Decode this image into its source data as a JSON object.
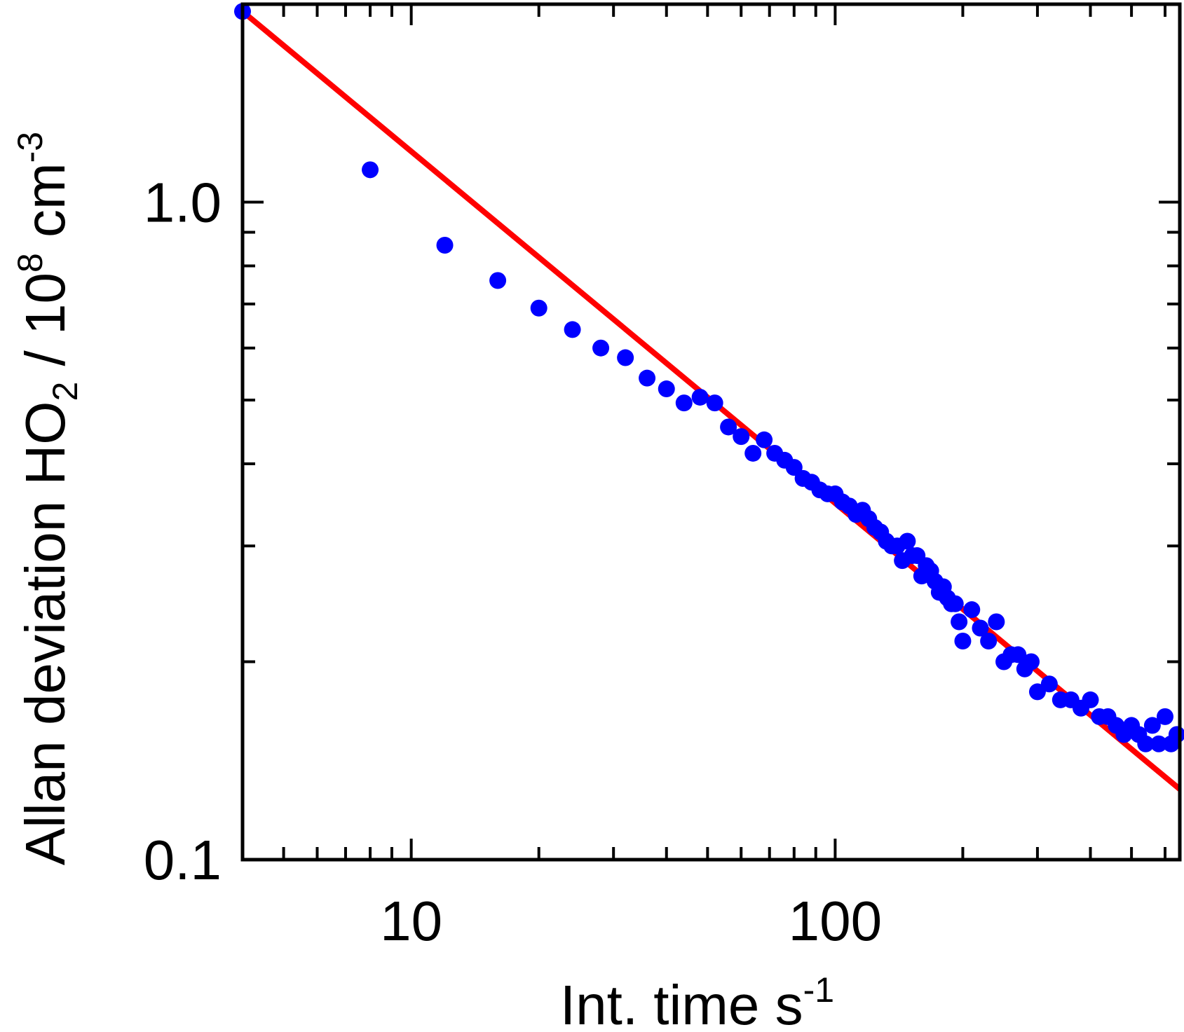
{
  "chart_data": {
    "type": "scatter",
    "xlabel": {
      "main": "Int. time s",
      "sup": "-1"
    },
    "ylabel": {
      "main": "Allan deviation HO",
      "sub": "2",
      "mid": " / 10",
      "sup1": "8",
      "mid2": " cm",
      "sup2": "-3"
    },
    "x_scale": "log",
    "y_scale": "log",
    "xlim": [
      4,
      650
    ],
    "ylim": [
      0.1,
      2.0
    ],
    "x_ticks": [
      10,
      100
    ],
    "x_tick_labels": [
      "10",
      "100"
    ],
    "y_ticks": [
      0.1,
      1.0
    ],
    "y_tick_labels": [
      "0.1",
      "1.0"
    ],
    "grid": false,
    "legend": "none",
    "colors": {
      "points": "#0000ff",
      "fit": "#ff0000",
      "axes": "#000000"
    },
    "series": [
      {
        "kind": "points",
        "x": [
          4,
          8,
          12,
          16,
          20,
          24,
          28,
          32,
          36,
          40,
          44,
          48,
          52,
          56,
          60,
          64,
          68,
          72,
          76,
          80,
          84,
          88,
          92,
          96,
          100,
          104,
          108,
          112,
          116,
          120,
          124,
          128,
          132,
          136,
          140,
          144,
          148,
          152,
          156,
          160,
          164,
          168,
          172,
          176,
          180,
          184,
          188,
          192,
          196,
          200,
          210,
          220,
          230,
          240,
          250,
          260,
          270,
          280,
          290,
          300,
          320,
          340,
          360,
          380,
          400,
          420,
          440,
          460,
          480,
          500,
          520,
          540,
          560,
          580,
          600,
          620,
          640
        ],
        "y": [
          1.95,
          1.12,
          0.86,
          0.76,
          0.69,
          0.64,
          0.6,
          0.58,
          0.54,
          0.52,
          0.495,
          0.505,
          0.495,
          0.455,
          0.44,
          0.415,
          0.435,
          0.415,
          0.405,
          0.395,
          0.38,
          0.375,
          0.365,
          0.36,
          0.36,
          0.35,
          0.345,
          0.335,
          0.34,
          0.33,
          0.32,
          0.315,
          0.305,
          0.3,
          0.3,
          0.285,
          0.305,
          0.29,
          0.29,
          0.27,
          0.28,
          0.275,
          0.265,
          0.255,
          0.26,
          0.25,
          0.245,
          0.245,
          0.23,
          0.215,
          0.24,
          0.225,
          0.215,
          0.23,
          0.2,
          0.205,
          0.205,
          0.195,
          0.2,
          0.18,
          0.185,
          0.175,
          0.175,
          0.17,
          0.175,
          0.165,
          0.165,
          0.16,
          0.155,
          0.16,
          0.155,
          0.15,
          0.16,
          0.15,
          0.165,
          0.15,
          0.155
        ]
      },
      {
        "kind": "line",
        "x": [
          4,
          650
        ],
        "y": [
          1.95,
          0.128
        ]
      }
    ]
  }
}
